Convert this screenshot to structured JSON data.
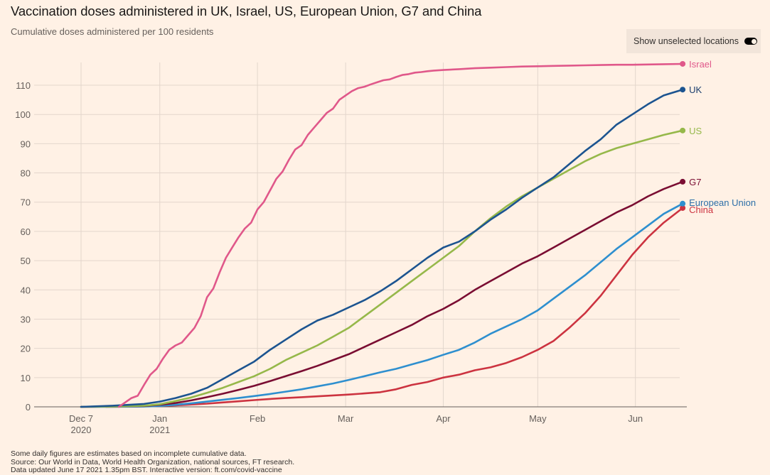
{
  "title": "Vaccination doses administered in UK, Israel, US, European Union, G7 and China",
  "subtitle": "Cumulative doses administered per 100 residents",
  "toggle": {
    "label": "Show unselected locations",
    "state": "on",
    "icon": "toggle-switch-icon"
  },
  "footer": {
    "lines": [
      "Some daily figures are estimates based on incomplete cumulative data.",
      "Source: Our World in Data, World Health Organization, national sources, FT research.",
      "Data updated June 17 2021 1.35pm BST. Interactive version: ft.com/covid-vaccine"
    ]
  },
  "chart_data": {
    "type": "line",
    "title": "Vaccination doses administered in UK, Israel, US, European Union, G7 and China",
    "subtitle": "Cumulative doses administered per 100 residents",
    "xlabel": "",
    "ylabel": "",
    "x_unit": "days since 2020-12-07",
    "xlim": [
      0,
      191
    ],
    "ylim": [
      0,
      117
    ],
    "yticks": [
      0,
      10,
      20,
      30,
      40,
      50,
      60,
      70,
      80,
      90,
      100,
      110
    ],
    "xticks": [
      {
        "day": 0,
        "label": "Dec 7",
        "sublabel": "2020"
      },
      {
        "day": 25,
        "label": "Jan",
        "sublabel": "2021"
      },
      {
        "day": 56,
        "label": "Feb",
        "sublabel": ""
      },
      {
        "day": 84,
        "label": "Mar",
        "sublabel": ""
      },
      {
        "day": 115,
        "label": "Apr",
        "sublabel": ""
      },
      {
        "day": 145,
        "label": "May",
        "sublabel": ""
      },
      {
        "day": 176,
        "label": "Jun",
        "sublabel": ""
      }
    ],
    "grid": true,
    "legend": "direct-labels-right",
    "series": [
      {
        "name": "Israel",
        "color": "#e0588a",
        "label_color": "#e0588a",
        "x": [
          12,
          14,
          16,
          18,
          20,
          22,
          24,
          26,
          28,
          30,
          32,
          34,
          36,
          38,
          40,
          42,
          44,
          46,
          48,
          50,
          52,
          54,
          56,
          58,
          60,
          62,
          64,
          66,
          68,
          70,
          72,
          74,
          76,
          78,
          80,
          82,
          84,
          86,
          88,
          90,
          92,
          94,
          96,
          98,
          100,
          102,
          104,
          106,
          108,
          110,
          112,
          115,
          120,
          125,
          130,
          135,
          140,
          145,
          150,
          155,
          160,
          165,
          170,
          175,
          180,
          185,
          191
        ],
        "y": [
          0,
          1.5,
          3,
          3.8,
          7.5,
          11,
          13,
          16.5,
          19.5,
          21,
          22,
          24.5,
          27,
          31,
          37.5,
          40.5,
          46,
          51,
          54.5,
          58,
          61,
          63,
          67.5,
          70,
          74,
          78,
          80.5,
          84.5,
          88,
          89.5,
          93,
          95.5,
          98,
          100.5,
          102,
          105,
          106.5,
          108,
          109,
          109.5,
          110.3,
          111,
          111.7,
          112,
          112.8,
          113.5,
          113.8,
          114.3,
          114.5,
          114.8,
          115,
          115.2,
          115.5,
          115.8,
          116,
          116.2,
          116.4,
          116.5,
          116.6,
          116.7,
          116.8,
          116.9,
          117,
          117,
          117.1,
          117.2,
          117.3
        ]
      },
      {
        "name": "UK",
        "color": "#1c5490",
        "label_color": "#1c3e6e",
        "x": [
          0,
          10,
          20,
          25,
          30,
          35,
          40,
          45,
          50,
          55,
          60,
          65,
          70,
          75,
          80,
          85,
          90,
          95,
          100,
          105,
          110,
          115,
          120,
          125,
          130,
          135,
          140,
          145,
          150,
          155,
          160,
          165,
          170,
          175,
          180,
          185,
          191
        ],
        "y": [
          0,
          0.4,
          1,
          1.8,
          3,
          4.5,
          6.5,
          9.5,
          12.5,
          15.5,
          19.5,
          23,
          26.5,
          29.5,
          31.5,
          34,
          36.5,
          39.5,
          43,
          47,
          51,
          54.5,
          56.5,
          60,
          64,
          67.5,
          71.5,
          75,
          78.5,
          83,
          87.5,
          91.5,
          96.5,
          100,
          103.5,
          106.5,
          108.5
        ]
      },
      {
        "name": "US",
        "color": "#96b84a",
        "label_color": "#96b84a",
        "x": [
          0,
          10,
          20,
          25,
          30,
          35,
          40,
          45,
          50,
          55,
          60,
          65,
          70,
          75,
          80,
          85,
          90,
          95,
          100,
          105,
          110,
          115,
          120,
          125,
          130,
          135,
          140,
          145,
          150,
          155,
          160,
          165,
          170,
          175,
          180,
          185,
          191
        ],
        "y": [
          0,
          0.1,
          0.4,
          0.9,
          2,
          3.2,
          4.8,
          6.5,
          8.5,
          10.5,
          13,
          16,
          18.5,
          21,
          24,
          27,
          31,
          35,
          39,
          43,
          47,
          51,
          55,
          60,
          64.5,
          68.5,
          72,
          75,
          78,
          81,
          84,
          86.5,
          88.5,
          90,
          91.5,
          93,
          94.5
        ]
      },
      {
        "name": "G7",
        "color": "#7a0d32",
        "label_color": "#7a0d32",
        "x": [
          0,
          10,
          20,
          25,
          30,
          35,
          40,
          45,
          50,
          55,
          60,
          65,
          70,
          75,
          80,
          85,
          90,
          95,
          100,
          105,
          110,
          115,
          120,
          125,
          130,
          135,
          140,
          145,
          150,
          155,
          160,
          165,
          170,
          175,
          180,
          185,
          191
        ],
        "y": [
          0,
          0.1,
          0.3,
          0.7,
          1.3,
          2.2,
          3.3,
          4.5,
          5.8,
          7.2,
          8.8,
          10.5,
          12.2,
          14,
          16,
          18,
          20.5,
          23,
          25.5,
          28,
          31,
          33.5,
          36.5,
          40,
          43,
          46,
          49,
          51.5,
          54.5,
          57.5,
          60.5,
          63.5,
          66.5,
          69,
          72,
          74.5,
          77
        ]
      },
      {
        "name": "European Union",
        "color": "#2e8fcf",
        "label_color": "#2e6fa8",
        "x": [
          0,
          10,
          20,
          25,
          30,
          35,
          40,
          45,
          50,
          55,
          60,
          65,
          70,
          75,
          80,
          85,
          90,
          95,
          100,
          105,
          110,
          115,
          120,
          125,
          130,
          135,
          140,
          145,
          150,
          155,
          160,
          165,
          170,
          175,
          180,
          185,
          191
        ],
        "y": [
          0,
          0,
          0.1,
          0.3,
          0.7,
          1.2,
          1.8,
          2.4,
          3,
          3.7,
          4.4,
          5.2,
          6,
          7,
          8,
          9.2,
          10.5,
          11.8,
          13,
          14.5,
          16,
          17.8,
          19.5,
          22,
          25,
          27.5,
          30,
          33,
          37,
          41,
          45,
          49.5,
          54,
          58,
          62,
          66,
          69.5
        ]
      },
      {
        "name": "China",
        "color": "#cc3340",
        "label_color": "#cc3340",
        "x": [
          8,
          15,
          20,
          25,
          30,
          35,
          40,
          45,
          50,
          55,
          60,
          65,
          70,
          75,
          80,
          85,
          90,
          95,
          100,
          105,
          110,
          115,
          120,
          125,
          130,
          135,
          140,
          145,
          150,
          155,
          160,
          165,
          170,
          175,
          180,
          185,
          191
        ],
        "y": [
          0,
          0.1,
          0.2,
          0.3,
          0.5,
          0.8,
          1.1,
          1.5,
          1.9,
          2.3,
          2.7,
          3,
          3.3,
          3.6,
          3.9,
          4.2,
          4.6,
          5,
          6,
          7.5,
          8.5,
          10,
          11,
          12.5,
          13.5,
          15,
          17,
          19.5,
          22.5,
          27,
          32,
          38,
          45,
          52,
          58,
          63,
          68
        ]
      }
    ]
  }
}
